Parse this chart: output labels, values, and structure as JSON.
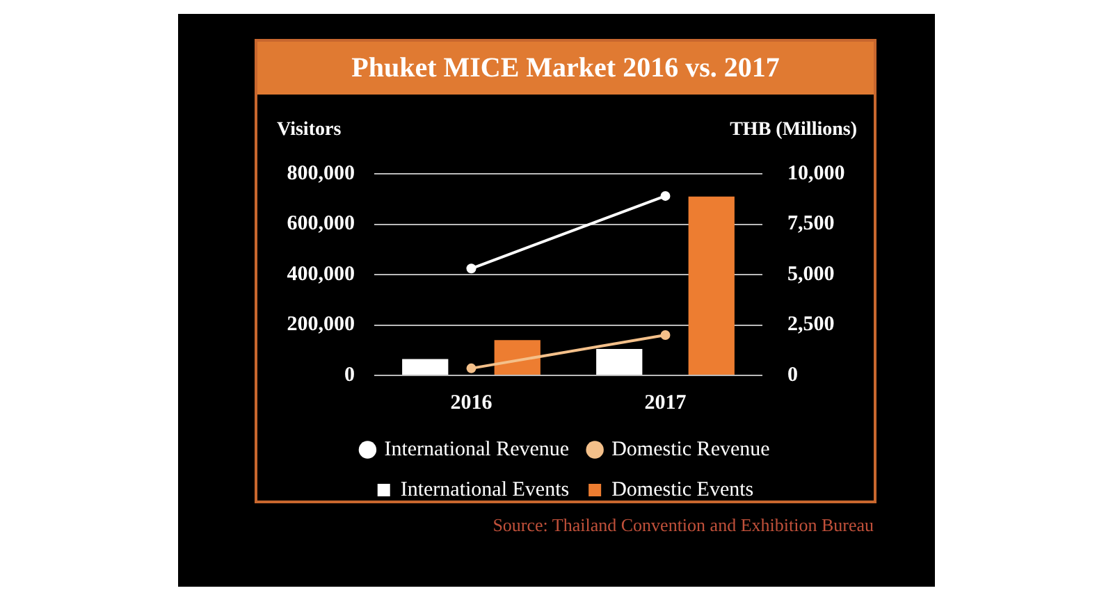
{
  "chart_data": {
    "type": "bar",
    "title": "Phuket MICE Market 2016 vs. 2017",
    "ylabel": "Visitors",
    "y2label": "THB (Millions)",
    "categories": [
      "2016",
      "2017"
    ],
    "series": [
      {
        "name": "International Events",
        "color": "#ffffff",
        "values": [
          65000,
          105000
        ]
      },
      {
        "name": "Domestic Events",
        "color": "#ed7d31",
        "values": [
          140000,
          710000
        ]
      },
      {
        "name": "International Revenue",
        "type": "line",
        "axis": "y2",
        "color": "#ffffff",
        "values": [
          5300,
          8900
        ]
      },
      {
        "name": "Domestic Revenue",
        "type": "line",
        "axis": "y2",
        "color": "#f4c08a",
        "values": [
          350,
          2000
        ]
      }
    ],
    "ylim": [
      0,
      800000
    ],
    "yticks": [
      {
        "value": 0,
        "label": "0"
      },
      {
        "value": 200000,
        "label": "200,000"
      },
      {
        "value": 400000,
        "label": "400,000"
      },
      {
        "value": 600000,
        "label": "600,000"
      },
      {
        "value": 800000,
        "label": "800,000"
      }
    ],
    "y2lim": [
      0,
      10000
    ],
    "y2ticks": [
      {
        "value": 0,
        "label": "0"
      },
      {
        "value": 2500,
        "label": "2,500"
      },
      {
        "value": 5000,
        "label": "5,000"
      },
      {
        "value": 7500,
        "label": "7,500"
      },
      {
        "value": 10000,
        "label": "10,000"
      }
    ],
    "grid": "y",
    "legend": "bottom",
    "marker": "circle",
    "annotations": [
      "Source: Thailand Convention and Exhibition Bureau"
    ]
  }
}
